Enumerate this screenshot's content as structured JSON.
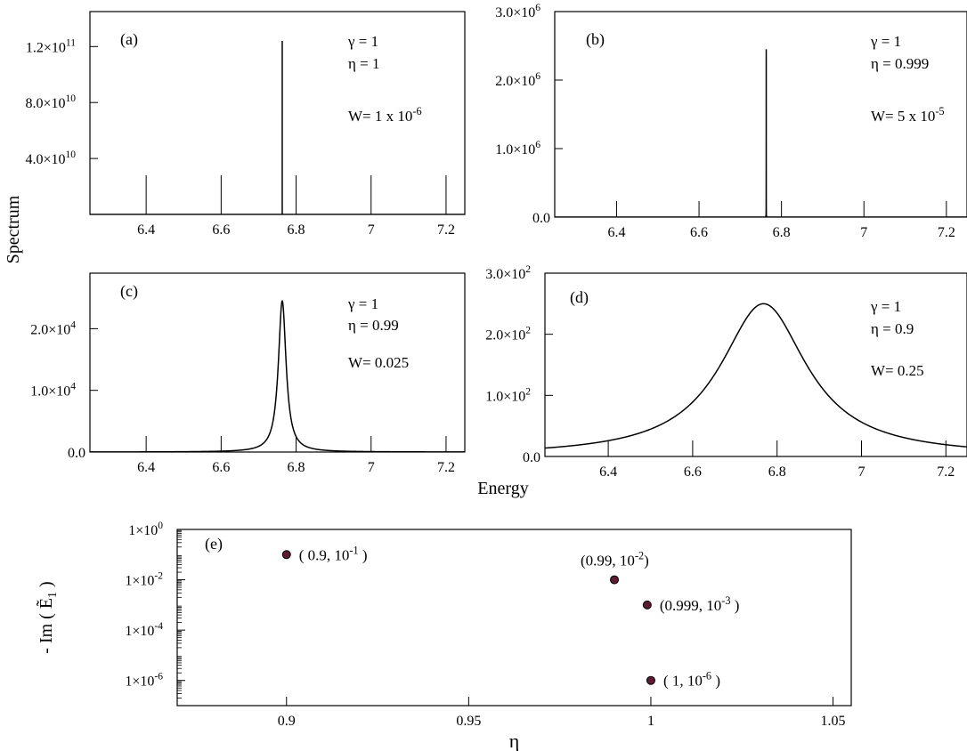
{
  "figure": {
    "ylabel_spectrum": "Spectrum",
    "xlabel_energy": "Energy"
  },
  "chart_data": [
    {
      "panel": "(a)",
      "type": "line",
      "xlim": [
        6.25,
        7.25
      ],
      "xticks": [
        6.4,
        6.6,
        6.8,
        7.0,
        7.2
      ],
      "xtick_labels": [
        "6.4",
        "6.6",
        "6.8",
        "7",
        "7.2"
      ],
      "ylim": [
        0,
        145000000000.0
      ],
      "yticks": [
        40000000000.0,
        80000000000.0,
        120000000000.0
      ],
      "ytick_labels": [
        {
          "m": "4.0×10",
          "e": "10"
        },
        {
          "m": "8.0×10",
          "e": "10"
        },
        {
          "m": "1.2×10",
          "e": "11"
        }
      ],
      "annotations": [
        "γ = 1",
        "η = 1",
        {
          "text": "W= 1 x 10",
          "sup": "-6"
        }
      ],
      "peak": {
        "center": 6.763,
        "height": 124000000000.0,
        "width": 1e-06
      }
    },
    {
      "panel": "(b)",
      "type": "line",
      "xlim": [
        6.25,
        7.25
      ],
      "xticks": [
        6.4,
        6.6,
        6.8,
        7.0,
        7.2
      ],
      "xtick_labels": [
        "6.4",
        "6.6",
        "6.8",
        "7",
        "7.2"
      ],
      "ylim": [
        0,
        3000000.0
      ],
      "yticks": [
        0,
        1000000.0,
        2000000.0,
        3000000.0
      ],
      "ytick_labels": [
        {
          "m": "0.0",
          "e": ""
        },
        {
          "m": "1.0×10",
          "e": "6"
        },
        {
          "m": "2.0×10",
          "e": "6"
        },
        {
          "m": "3.0×10",
          "e": "6"
        }
      ],
      "annotations": [
        "γ = 1",
        "η = 0.999",
        {
          "text": "W= 5 x 10",
          "sup": "-5"
        }
      ],
      "peak": {
        "center": 6.763,
        "height": 2450000.0,
        "width": 5e-05
      }
    },
    {
      "panel": "(c)",
      "type": "line",
      "xlim": [
        6.25,
        7.25
      ],
      "xticks": [
        6.4,
        6.6,
        6.8,
        7.0,
        7.2
      ],
      "xtick_labels": [
        "6.4",
        "6.6",
        "6.8",
        "7",
        "7.2"
      ],
      "ylim": [
        0,
        29000.0
      ],
      "yticks": [
        0,
        10000.0,
        20000.0
      ],
      "ytick_labels": [
        {
          "m": "0.0",
          "e": ""
        },
        {
          "m": "1.0×10",
          "e": "4"
        },
        {
          "m": "2.0×10",
          "e": "4"
        }
      ],
      "annotations": [
        "γ = 1",
        "η = 0.99",
        {
          "text": "W= 0.025",
          "sup": ""
        }
      ],
      "peak": {
        "center": 6.763,
        "height": 24500.0,
        "width": 0.0125
      }
    },
    {
      "panel": "(d)",
      "type": "line",
      "xlim": [
        6.25,
        7.25
      ],
      "xticks": [
        6.4,
        6.6,
        6.8,
        7.0,
        7.2
      ],
      "xtick_labels": [
        "6.4",
        "6.6",
        "6.8",
        "7",
        "7.2"
      ],
      "ylim": [
        0,
        300.0
      ],
      "yticks": [
        0,
        100.0,
        200.0,
        300.0
      ],
      "ytick_labels": [
        {
          "m": "0.0",
          "e": ""
        },
        {
          "m": "1.0×10",
          "e": "2"
        },
        {
          "m": "2.0×10",
          "e": "2"
        },
        {
          "m": "3.0×10",
          "e": "2"
        }
      ],
      "annotations": [
        "γ = 1",
        "η = 0.9",
        {
          "text": "W= 0.25",
          "sup": ""
        }
      ],
      "peak": {
        "center": 6.768,
        "height": 250.0,
        "width": 0.125
      }
    },
    {
      "panel": "(e)",
      "type": "scatter",
      "xlabel": "η",
      "ylabel": {
        "pre": "- Im ( ",
        "sym": "Ẽ",
        "sub": "1",
        "post": " )"
      },
      "xlim": [
        0.87,
        1.055
      ],
      "xticks": [
        0.9,
        0.95,
        1.0,
        1.05
      ],
      "xtick_labels": [
        "0.9",
        "0.95",
        "1",
        "1.05"
      ],
      "ylog": true,
      "ylim_log10": [
        -7,
        0
      ],
      "yticks_log10": [
        0,
        -2,
        -4,
        -6
      ],
      "ytick_labels": [
        {
          "m": "1×10",
          "e": "0"
        },
        {
          "m": "1×10",
          "e": "-2"
        },
        {
          "m": "1×10",
          "e": "-4"
        },
        {
          "m": "1×10",
          "e": "-6"
        }
      ],
      "points": [
        {
          "x": 0.9,
          "y": 0.1,
          "label": "( 0.9, 10",
          "sup": "-1",
          "tail": " )"
        },
        {
          "x": 0.99,
          "y": 0.01,
          "label": "(0.99, 10",
          "sup": "-2",
          "tail": ")"
        },
        {
          "x": 0.999,
          "y": 0.001,
          "label": "(0.999, 10",
          "sup": "-3",
          "tail": " )"
        },
        {
          "x": 1.0,
          "y": 1e-06,
          "label": "( 1, 10",
          "sup": "-6",
          "tail": " )"
        }
      ],
      "marker_color": "#5c1a33"
    }
  ]
}
